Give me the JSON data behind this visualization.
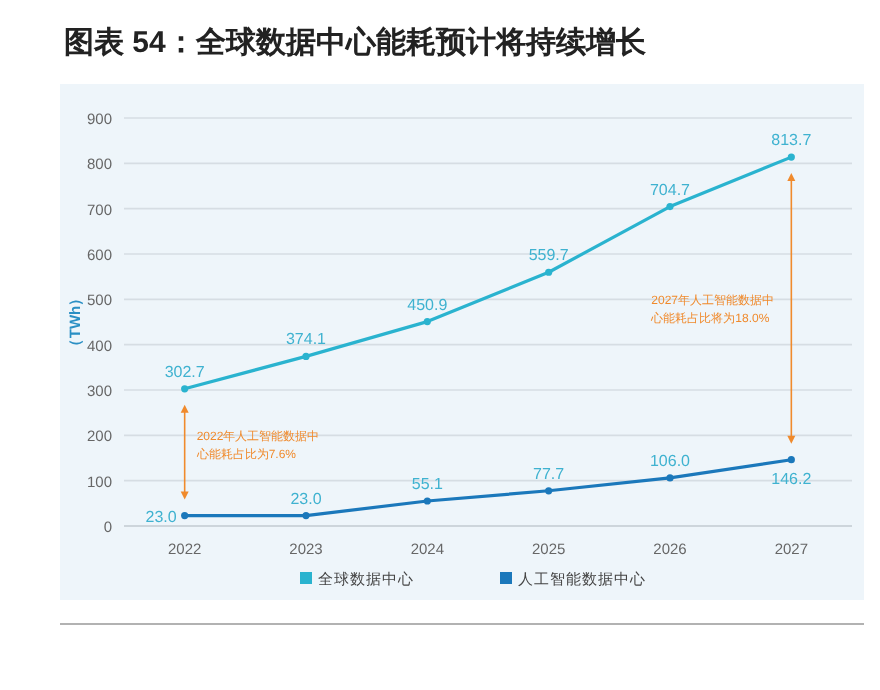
{
  "chart_data": {
    "type": "line",
    "title": "图表 54：全球数据中心能耗预计将持续增长",
    "ylabel": "（TWh）",
    "categories": [
      "2022",
      "2023",
      "2024",
      "2025",
      "2026",
      "2027"
    ],
    "series": [
      {
        "name": "全球数据中心",
        "color": "#2ab3cf",
        "values": [
          302.7,
          374.1,
          450.9,
          559.7,
          704.7,
          813.7
        ]
      },
      {
        "name": "人工智能数据中心",
        "color": "#1b78bb",
        "values": [
          23.0,
          23.0,
          55.1,
          77.7,
          106.0,
          146.2
        ],
        "value_labels": [
          "23.0",
          "23.0",
          "55.1",
          "77.7",
          "106.0",
          "146.2"
        ]
      }
    ],
    "ylim": [
      0,
      900
    ],
    "yticks": [
      0,
      100,
      200,
      300,
      400,
      500,
      600,
      700,
      800,
      900
    ],
    "grid": "y",
    "legend": "bottom",
    "marker": "circle",
    "data_labels": true,
    "annotations": [
      "2022年人工智能数据中心能耗占比为7.6%",
      "2027年人工智能数据中心能耗占比将为18.0%"
    ]
  }
}
